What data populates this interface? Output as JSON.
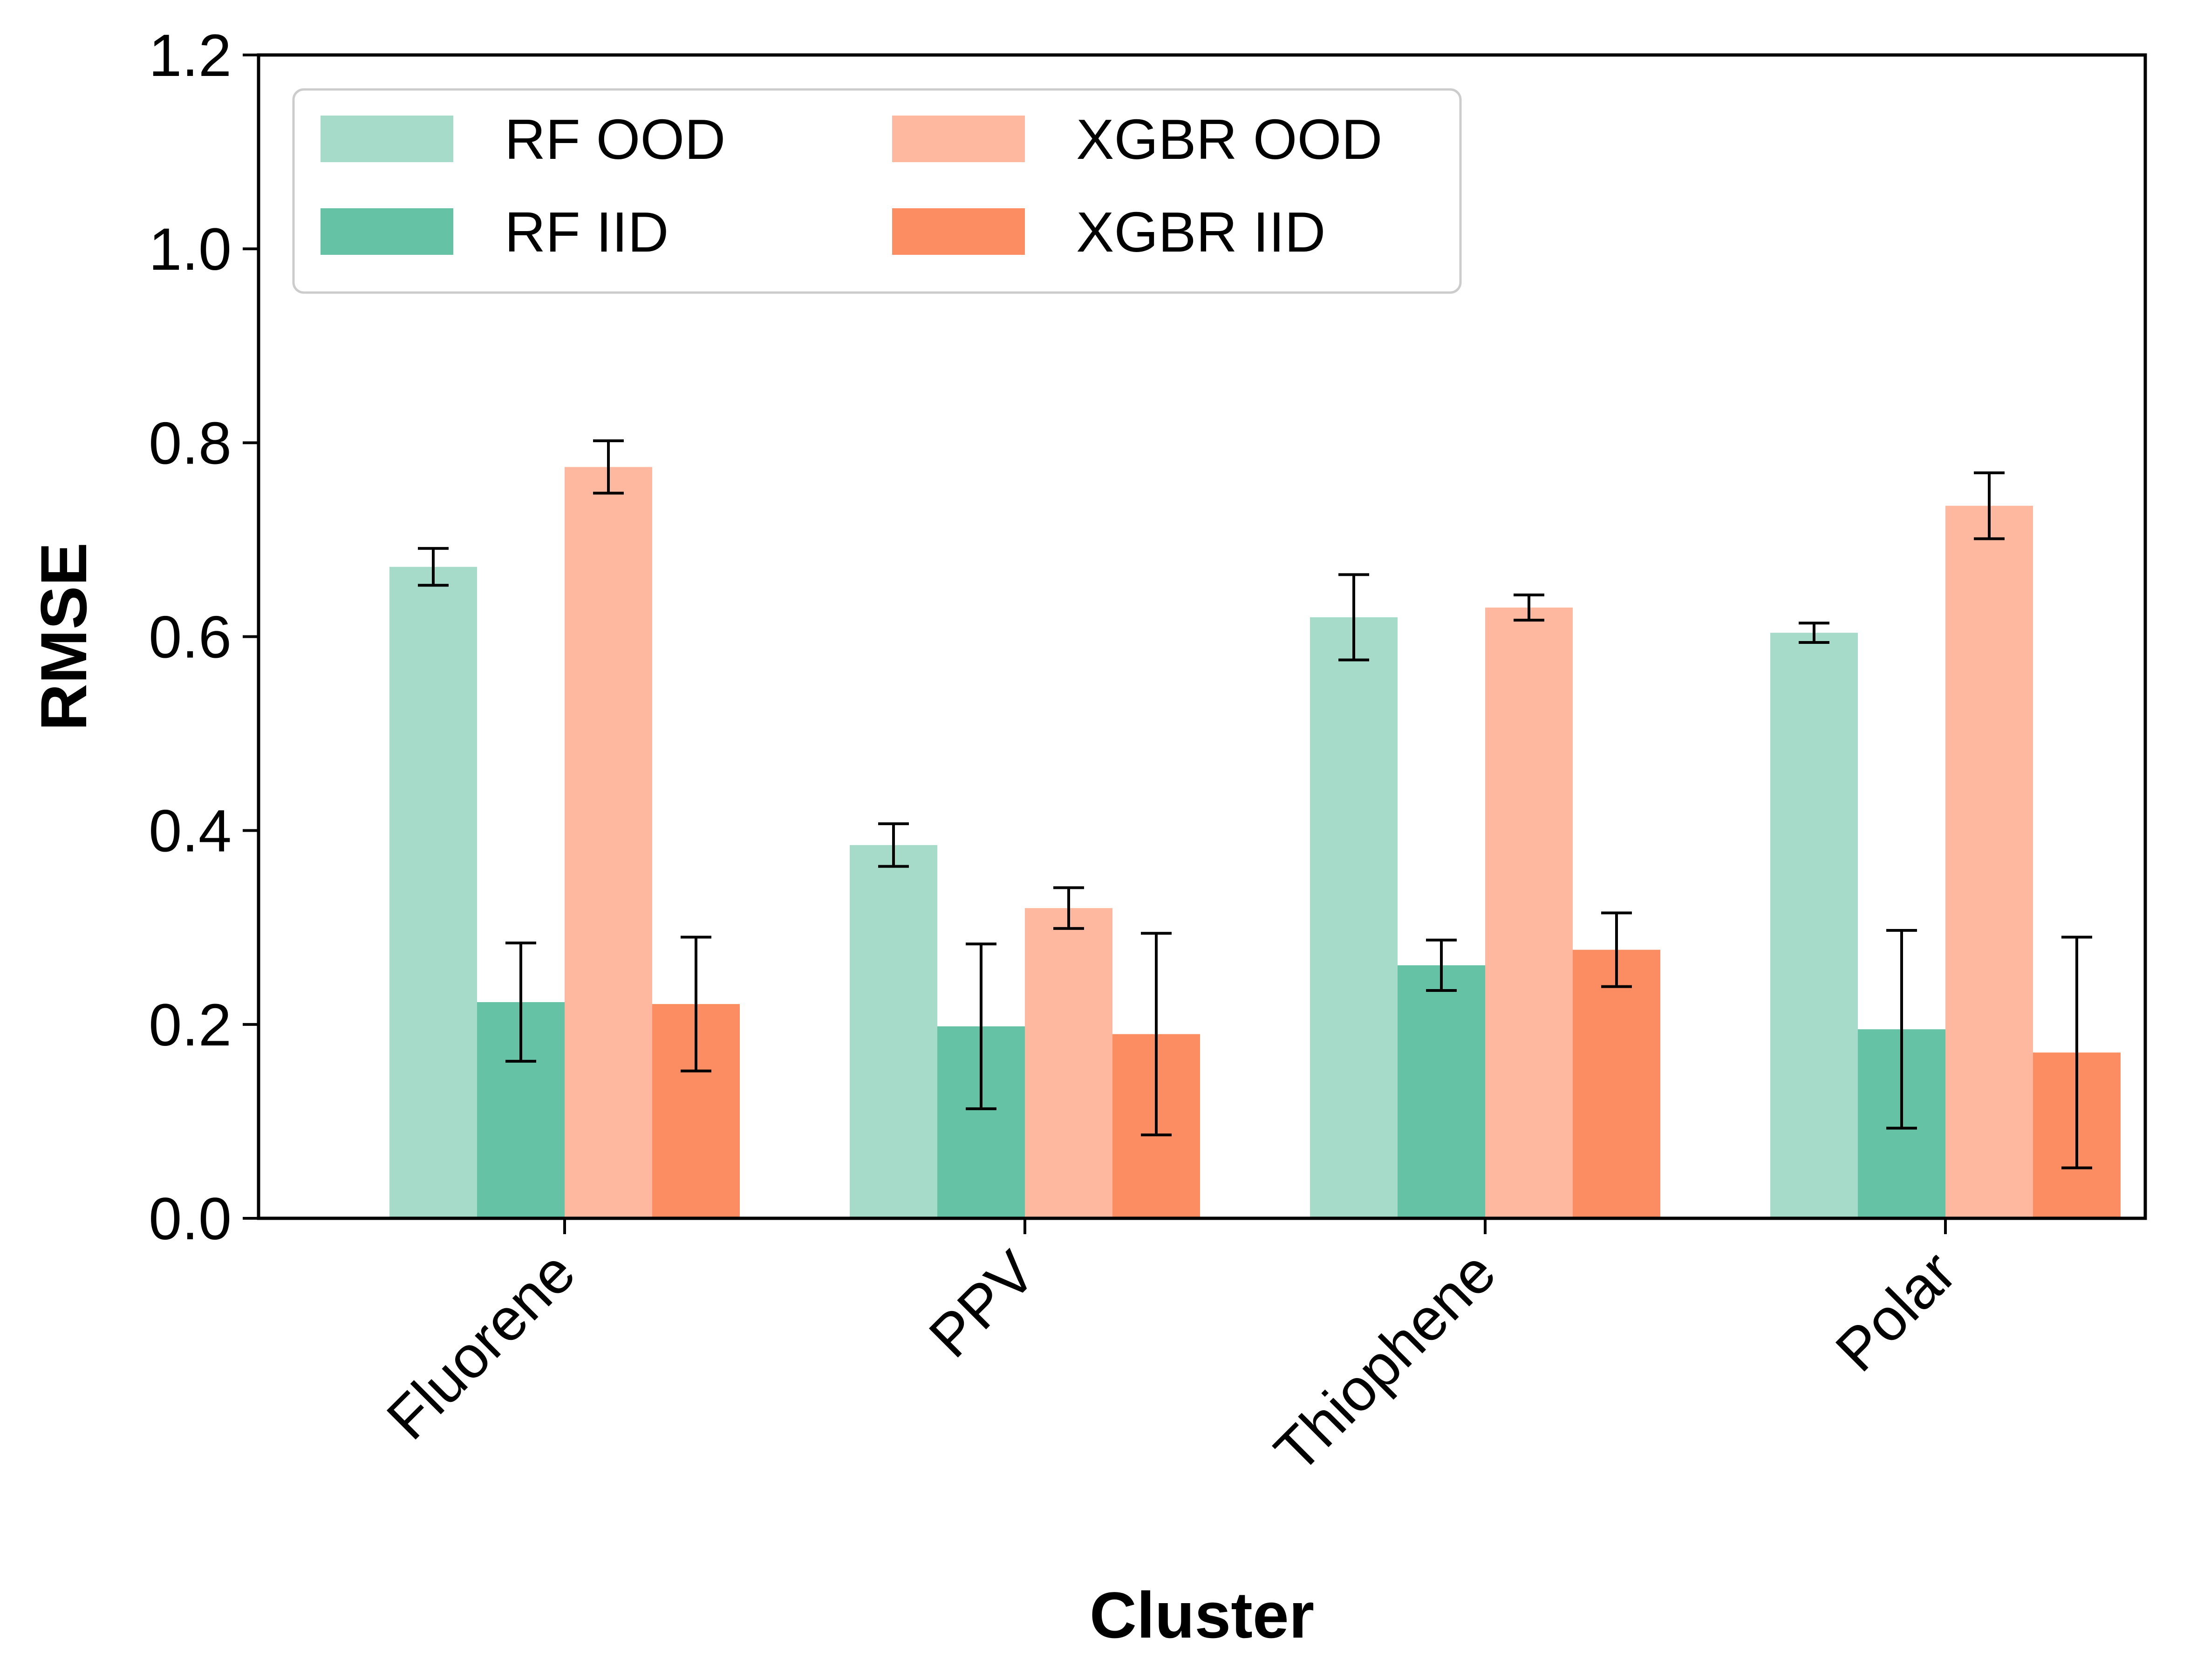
{
  "chart_data": {
    "type": "bar",
    "title": "",
    "xlabel": "Cluster",
    "ylabel": "RMSE",
    "ylim": [
      0.0,
      1.2
    ],
    "yticks": [
      "0.0",
      "0.2",
      "0.4",
      "0.6",
      "0.8",
      "1.0",
      "1.2"
    ],
    "categories": [
      "Fluorene",
      "PPV",
      "Thiophene",
      "Polar"
    ],
    "legend_position": "top-left",
    "legend_columns": 2,
    "grid": false,
    "error_bars": true,
    "series": [
      {
        "name": "RF OOD",
        "color": "#a6dbc9",
        "values": [
          0.672,
          0.385,
          0.62,
          0.604
        ],
        "errors": [
          0.019,
          0.022,
          0.044,
          0.01
        ]
      },
      {
        "name": "RF IID",
        "color": "#66c2a5",
        "values": [
          0.223,
          0.198,
          0.261,
          0.195
        ],
        "errors": [
          0.061,
          0.085,
          0.026,
          0.102
        ]
      },
      {
        "name": "XGBR OOD",
        "color": "#fdb89f",
        "values": [
          0.775,
          0.32,
          0.63,
          0.735
        ],
        "errors": [
          0.027,
          0.021,
          0.013,
          0.034
        ]
      },
      {
        "name": "XGBR IID",
        "color": "#fc8d62",
        "values": [
          0.221,
          0.19,
          0.277,
          0.171
        ],
        "errors": [
          0.069,
          0.104,
          0.038,
          0.119
        ]
      }
    ]
  }
}
